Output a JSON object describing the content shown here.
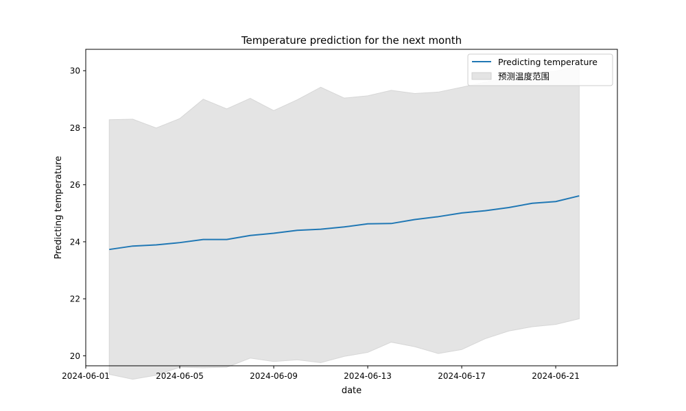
{
  "chart_data": {
    "type": "line",
    "title": "Temperature prediction for the next month",
    "xlabel": "date",
    "ylabel": "Predicting temperature",
    "x": [
      "2024-06-02",
      "2024-06-03",
      "2024-06-04",
      "2024-06-05",
      "2024-06-06",
      "2024-06-07",
      "2024-06-08",
      "2024-06-09",
      "2024-06-10",
      "2024-06-11",
      "2024-06-12",
      "2024-06-13",
      "2024-06-14",
      "2024-06-15",
      "2024-06-16",
      "2024-06-17",
      "2024-06-18",
      "2024-06-19",
      "2024-06-20",
      "2024-06-21",
      "2024-06-22"
    ],
    "series": [
      {
        "name": "Predicting temperature",
        "color": "#1f77b4",
        "values": [
          23.73,
          23.85,
          23.89,
          23.97,
          24.08,
          24.08,
          24.22,
          24.3,
          24.4,
          24.44,
          24.52,
          24.63,
          24.64,
          24.78,
          24.88,
          25.01,
          25.09,
          25.2,
          25.35,
          25.41,
          25.61
        ]
      }
    ],
    "band": {
      "name": "预测温度范围",
      "color": "#e4e4e4",
      "lower": [
        19.35,
        19.18,
        19.32,
        19.6,
        19.58,
        19.6,
        19.92,
        19.8,
        19.86,
        19.76,
        19.98,
        20.12,
        20.48,
        20.32,
        20.08,
        20.22,
        20.6,
        20.87,
        21.02,
        21.1,
        21.3
      ],
      "upper": [
        28.28,
        28.3,
        27.99,
        28.32,
        29.0,
        28.66,
        29.03,
        28.6,
        28.98,
        29.42,
        29.04,
        29.12,
        29.31,
        29.2,
        29.25,
        29.42,
        29.6,
        29.76,
        29.92,
        29.98,
        30.2
      ]
    },
    "xlim": [
      "2024-06-01T00:00",
      "2024-06-23T15:00"
    ],
    "ylim": [
      19.65,
      30.75
    ],
    "xticks": [
      "2024-06-01",
      "2024-06-05",
      "2024-06-09",
      "2024-06-13",
      "2024-06-17",
      "2024-06-21"
    ],
    "yticks": [
      20,
      22,
      24,
      26,
      28,
      30
    ],
    "grid": false,
    "legend": "top-right"
  }
}
